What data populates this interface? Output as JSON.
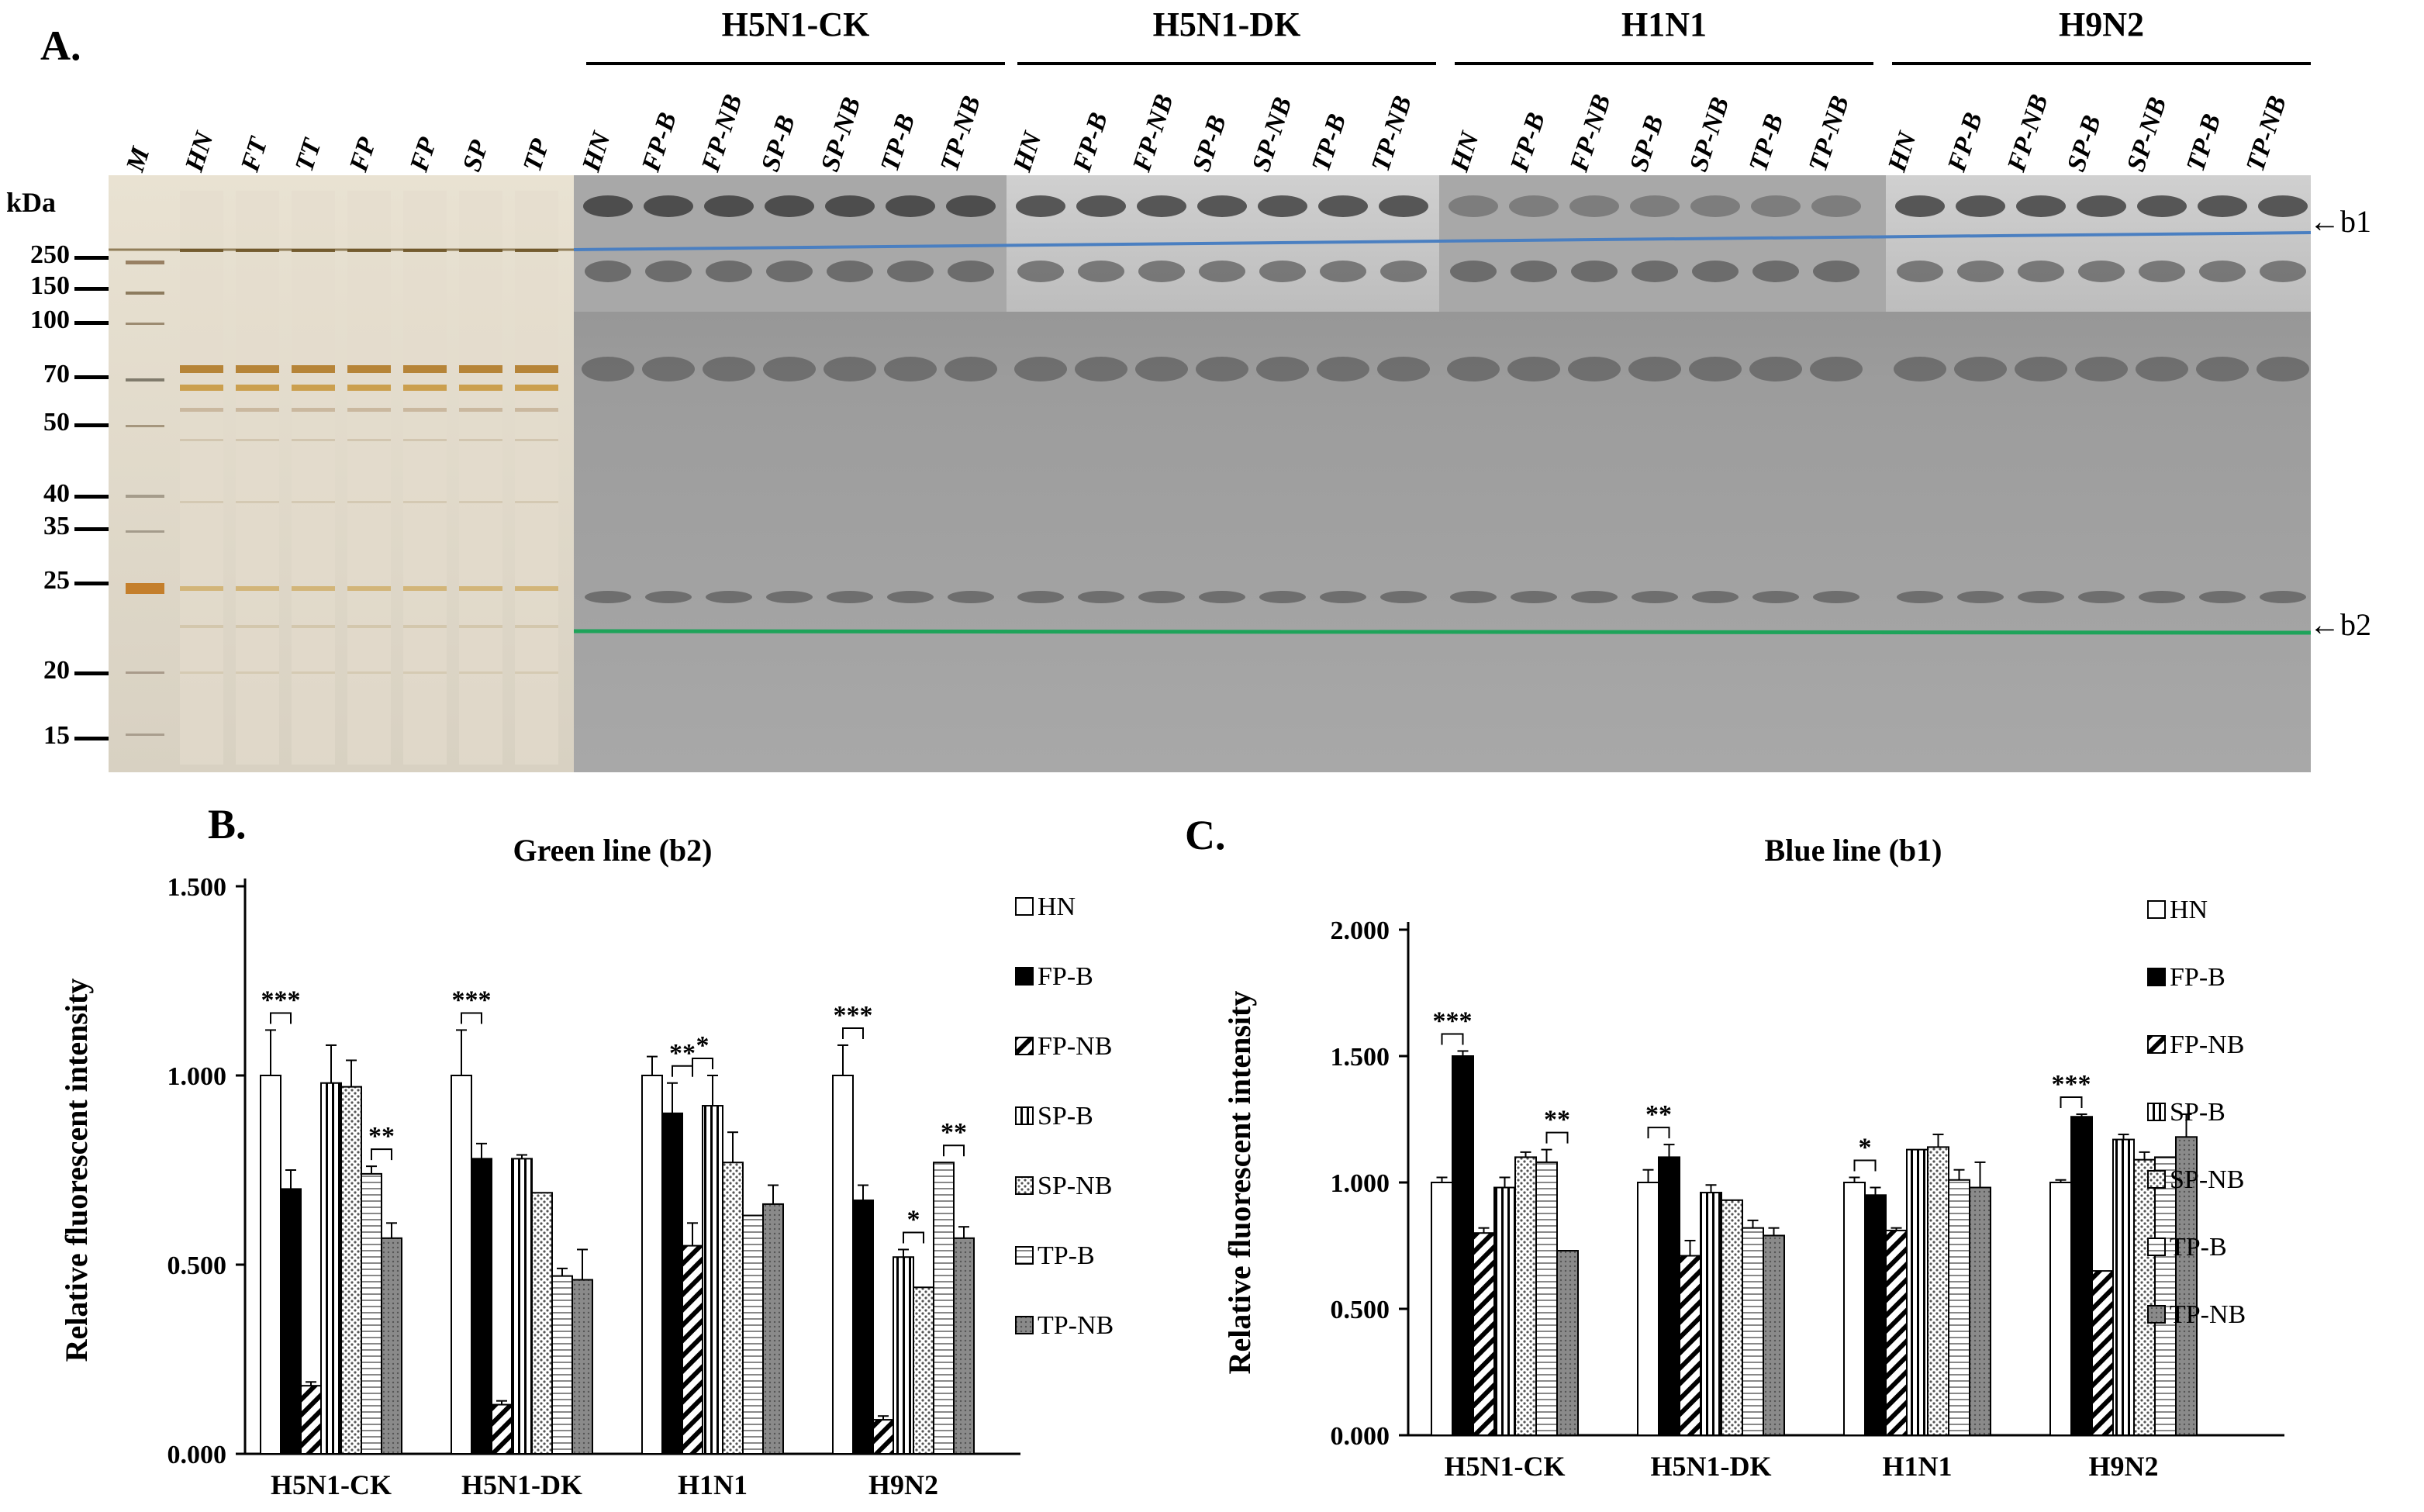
{
  "panel_a": {
    "letter": "A.",
    "unit_label": "kDa",
    "marker_labels": [
      "250",
      "150",
      "100",
      "70",
      "50",
      "40",
      "35",
      "25",
      "20",
      "15"
    ],
    "silver_lanes": [
      "M",
      "HN",
      "FT",
      "TT",
      "FP",
      "FP",
      "SP",
      "TP"
    ],
    "group_lanes": [
      "HN",
      "FP-B",
      "FP-NB",
      "SP-B",
      "SP-NB",
      "TP-B",
      "TP-NB"
    ],
    "groups": [
      "H5N1-CK",
      "H5N1-DK",
      "H1N1",
      "H9N2"
    ],
    "band_b1": "b1",
    "band_b2": "b2",
    "colors": {
      "blue_line": "#4a7fc1",
      "green_line": "#1ea35a"
    }
  },
  "chart_data": [
    {
      "type": "bar",
      "letter": "B.",
      "title": "Green line (b2)",
      "ylabel": "Relative fluorescent intensity",
      "yticks": [
        "0.000",
        "0.500",
        "1.000",
        "1.500"
      ],
      "ylim": [
        0,
        1.5
      ],
      "categories": [
        "H5N1-CK",
        "H5N1-DK",
        "H1N1",
        "H9N2"
      ],
      "series": [
        {
          "name": "HN",
          "values": [
            1.0,
            1.0,
            1.0,
            1.0
          ],
          "errors": [
            0.12,
            0.12,
            0.05,
            0.08
          ]
        },
        {
          "name": "FP-B",
          "values": [
            0.7,
            0.78,
            0.9,
            0.67
          ],
          "errors": [
            0.05,
            0.04,
            0.08,
            0.04
          ]
        },
        {
          "name": "FP-NB",
          "values": [
            0.18,
            0.13,
            0.55,
            0.09
          ],
          "errors": [
            0.01,
            0.01,
            0.06,
            0.01
          ]
        },
        {
          "name": "SP-B",
          "values": [
            0.98,
            0.78,
            0.92,
            0.52
          ],
          "errors": [
            0.1,
            0.01,
            0.08,
            0.02
          ]
        },
        {
          "name": "SP-NB",
          "values": [
            0.97,
            0.69,
            0.77,
            0.44
          ],
          "errors": [
            0.07,
            0.0,
            0.08,
            0.0
          ]
        },
        {
          "name": "TP-B",
          "values": [
            0.74,
            0.47,
            0.63,
            0.77
          ],
          "errors": [
            0.02,
            0.02,
            0.0,
            0.0
          ]
        },
        {
          "name": "TP-NB",
          "values": [
            0.57,
            0.46,
            0.66,
            0.57
          ],
          "errors": [
            0.04,
            0.08,
            0.05,
            0.03
          ]
        }
      ],
      "significance": [
        {
          "cat": 0,
          "a": 0,
          "b": 1,
          "label": "***"
        },
        {
          "cat": 0,
          "a": 5,
          "b": 6,
          "label": "**"
        },
        {
          "cat": 1,
          "a": 0,
          "b": 1,
          "label": "***"
        },
        {
          "cat": 2,
          "a": 1,
          "b": 2,
          "label": "**"
        },
        {
          "cat": 2,
          "a": 2,
          "b": 3,
          "label": "*"
        },
        {
          "cat": 3,
          "a": 0,
          "b": 1,
          "label": "***"
        },
        {
          "cat": 3,
          "a": 3,
          "b": 4,
          "label": "*"
        },
        {
          "cat": 3,
          "a": 5,
          "b": 6,
          "label": "**"
        }
      ]
    },
    {
      "type": "bar",
      "letter": "C.",
      "title": "Blue line (b1)",
      "ylabel": "Relative fluorescent intensity",
      "yticks": [
        "0.000",
        "0.500",
        "1.000",
        "1.500",
        "2.000"
      ],
      "ylim": [
        0,
        2.0
      ],
      "categories": [
        "H5N1-CK",
        "H5N1-DK",
        "H1N1",
        "H9N2"
      ],
      "series": [
        {
          "name": "HN",
          "values": [
            1.0,
            1.0,
            1.0,
            1.0
          ],
          "errors": [
            0.02,
            0.05,
            0.02,
            0.01
          ]
        },
        {
          "name": "FP-B",
          "values": [
            1.5,
            1.1,
            0.95,
            1.26
          ],
          "errors": [
            0.02,
            0.05,
            0.03,
            0.01
          ]
        },
        {
          "name": "FP-NB",
          "values": [
            0.8,
            0.71,
            0.81,
            0.65
          ],
          "errors": [
            0.02,
            0.06,
            0.01,
            0.0
          ]
        },
        {
          "name": "SP-B",
          "values": [
            0.98,
            0.96,
            1.13,
            1.17
          ],
          "errors": [
            0.04,
            0.03,
            0.0,
            0.02
          ]
        },
        {
          "name": "SP-NB",
          "values": [
            1.1,
            0.93,
            1.14,
            1.09
          ],
          "errors": [
            0.02,
            0.0,
            0.05,
            0.03
          ]
        },
        {
          "name": "TP-B",
          "values": [
            1.08,
            0.82,
            1.01,
            1.1
          ],
          "errors": [
            0.05,
            0.03,
            0.04,
            0.0
          ]
        },
        {
          "name": "TP-NB",
          "values": [
            0.73,
            0.79,
            0.98,
            1.18
          ],
          "errors": [
            0.0,
            0.03,
            0.1,
            0.09
          ]
        }
      ],
      "significance": [
        {
          "cat": 0,
          "a": 0,
          "b": 1,
          "label": "***"
        },
        {
          "cat": 0,
          "a": 5,
          "b": 6,
          "label": "**"
        },
        {
          "cat": 1,
          "a": 0,
          "b": 1,
          "label": "**"
        },
        {
          "cat": 2,
          "a": 0,
          "b": 1,
          "label": "*"
        },
        {
          "cat": 3,
          "a": 0,
          "b": 1,
          "label": "***"
        }
      ]
    }
  ]
}
